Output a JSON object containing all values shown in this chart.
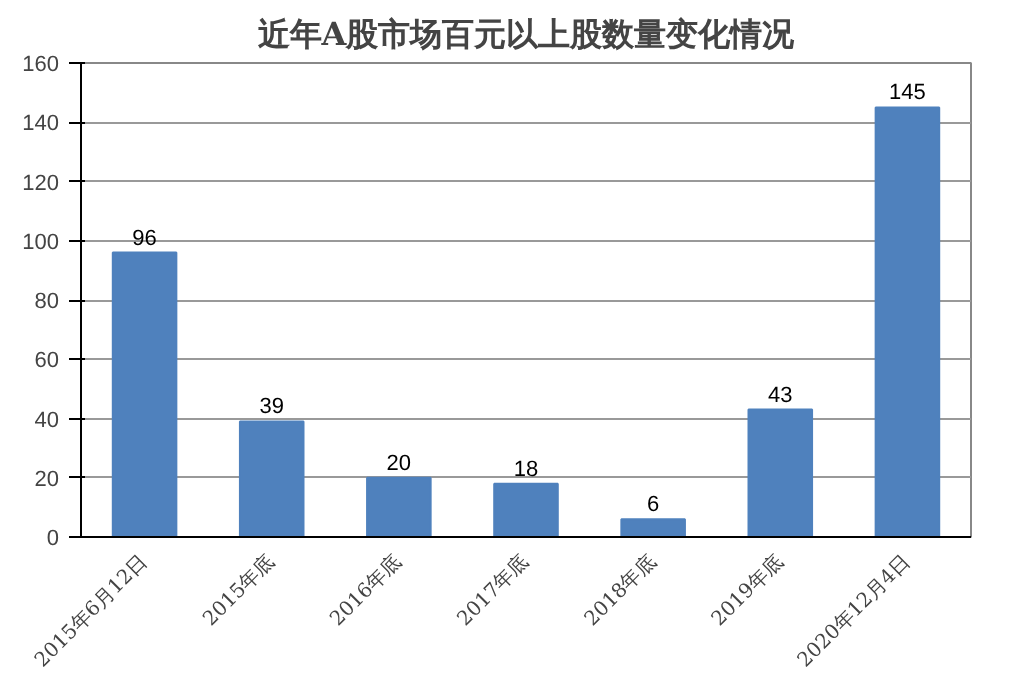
{
  "chart_data": {
    "type": "bar",
    "title": "近年A股市场百元以上股数量变化情况",
    "categories": [
      "2015年6月12日",
      "2015年底",
      "2016年底",
      "2017年底",
      "2018年底",
      "2019年底",
      "2020年12月4日"
    ],
    "values": [
      96,
      39,
      20,
      18,
      6,
      43,
      145
    ],
    "color": "#4f81bd",
    "ylim": [
      0,
      160
    ],
    "yticks": [
      0,
      20,
      40,
      60,
      80,
      100,
      120,
      140,
      160
    ],
    "grid": "y",
    "data_labels": true
  }
}
